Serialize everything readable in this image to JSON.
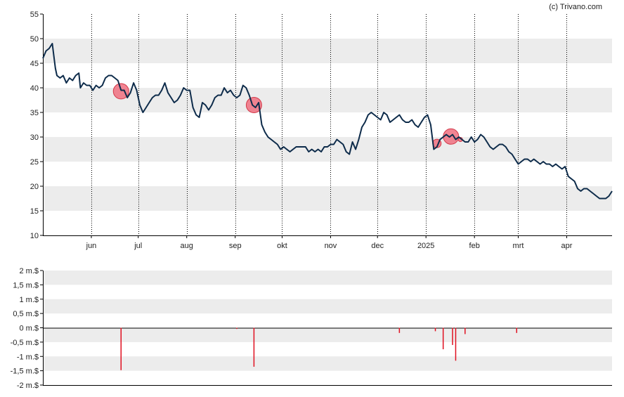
{
  "credit": "(c) Trivano.com",
  "colors": {
    "price_line": "#0d2b4a",
    "band": "#ececec",
    "marker_fill": "#f07080",
    "marker_stroke": "#d33a4a",
    "volume_bar": "#e01020",
    "axis": "#000000"
  },
  "chart_data": [
    {
      "type": "line",
      "title": "",
      "xlabel": "",
      "ylabel": "",
      "ylim": [
        10,
        55
      ],
      "y_ticks": [
        "10",
        "15",
        "20",
        "25",
        "30",
        "35",
        "40",
        "45",
        "50",
        "55"
      ],
      "y_tick_values": [
        10,
        15,
        20,
        25,
        30,
        35,
        40,
        45,
        50,
        55
      ],
      "x_ticks": [
        {
          "label": "jun",
          "day": 31
        },
        {
          "label": "jul",
          "day": 61
        },
        {
          "label": "aug",
          "day": 92
        },
        {
          "label": "sep",
          "day": 123
        },
        {
          "label": "okt",
          "day": 153
        },
        {
          "label": "nov",
          "day": 184
        },
        {
          "label": "dec",
          "day": 214
        },
        {
          "label": "2025",
          "day": 245
        },
        {
          "label": "feb",
          "day": 276
        },
        {
          "label": "mrt",
          "day": 304
        },
        {
          "label": "apr",
          "day": 335
        }
      ],
      "xlim": [
        0,
        364
      ],
      "grid": "alternating horizontal bands, dotted vertical month lines",
      "series": [
        {
          "points": [
            [
              0,
              46
            ],
            [
              2,
              47.5
            ],
            [
              4,
              48
            ],
            [
              6,
              49
            ],
            [
              8,
              44
            ],
            [
              9,
              42.5
            ],
            [
              11,
              42
            ],
            [
              13,
              42.5
            ],
            [
              15,
              41
            ],
            [
              17,
              42
            ],
            [
              19,
              41.5
            ],
            [
              21,
              42.5
            ],
            [
              23,
              43
            ],
            [
              24,
              40
            ],
            [
              26,
              41
            ],
            [
              28,
              40.5
            ],
            [
              30,
              40.5
            ],
            [
              32,
              39.5
            ],
            [
              34,
              40.5
            ],
            [
              36,
              40
            ],
            [
              38,
              40.5
            ],
            [
              40,
              42
            ],
            [
              42,
              42.5
            ],
            [
              44,
              42.5
            ],
            [
              46,
              42
            ],
            [
              48,
              41.5
            ],
            [
              50,
              39.5
            ],
            [
              52,
              39.5
            ],
            [
              54,
              38
            ],
            [
              56,
              39
            ],
            [
              58,
              41
            ],
            [
              60,
              39.5
            ],
            [
              62,
              36.5
            ],
            [
              64,
              35
            ],
            [
              66,
              36
            ],
            [
              68,
              37
            ],
            [
              70,
              38
            ],
            [
              72,
              38.5
            ],
            [
              74,
              38.5
            ],
            [
              76,
              39.5
            ],
            [
              78,
              41
            ],
            [
              80,
              39
            ],
            [
              82,
              38
            ],
            [
              84,
              37
            ],
            [
              86,
              37.5
            ],
            [
              88,
              38.5
            ],
            [
              90,
              40
            ],
            [
              92,
              39.5
            ],
            [
              94,
              39.5
            ],
            [
              96,
              36
            ],
            [
              98,
              34.5
            ],
            [
              100,
              34
            ],
            [
              102,
              37
            ],
            [
              104,
              36.5
            ],
            [
              106,
              35.5
            ],
            [
              108,
              36.5
            ],
            [
              110,
              38
            ],
            [
              112,
              38.5
            ],
            [
              114,
              38.5
            ],
            [
              116,
              40
            ],
            [
              118,
              39
            ],
            [
              120,
              39.5
            ],
            [
              122,
              38.5
            ],
            [
              124,
              38
            ],
            [
              126,
              38.5
            ],
            [
              128,
              40.5
            ],
            [
              130,
              40
            ],
            [
              132,
              38.5
            ],
            [
              134,
              36.5
            ],
            [
              136,
              36
            ],
            [
              138,
              37
            ],
            [
              140,
              32.5
            ],
            [
              142,
              31
            ],
            [
              144,
              30
            ],
            [
              146,
              29.5
            ],
            [
              148,
              29
            ],
            [
              150,
              28.5
            ],
            [
              152,
              27.5
            ],
            [
              154,
              28
            ],
            [
              156,
              27.5
            ],
            [
              158,
              27
            ],
            [
              160,
              27.5
            ],
            [
              162,
              28
            ],
            [
              164,
              28
            ],
            [
              166,
              28
            ],
            [
              168,
              28
            ],
            [
              170,
              27
            ],
            [
              172,
              27.5
            ],
            [
              174,
              27
            ],
            [
              176,
              27.5
            ],
            [
              178,
              27
            ],
            [
              180,
              28
            ],
            [
              182,
              28
            ],
            [
              184,
              28.5
            ],
            [
              186,
              28.5
            ],
            [
              188,
              29.5
            ],
            [
              190,
              29
            ],
            [
              192,
              28.5
            ],
            [
              194,
              27
            ],
            [
              196,
              26.5
            ],
            [
              198,
              29
            ],
            [
              200,
              27.5
            ],
            [
              202,
              29.5
            ],
            [
              204,
              32
            ],
            [
              206,
              33
            ],
            [
              208,
              34.5
            ],
            [
              210,
              35
            ],
            [
              212,
              34.5
            ],
            [
              214,
              34
            ],
            [
              216,
              33.5
            ],
            [
              218,
              35
            ],
            [
              220,
              34.5
            ],
            [
              222,
              33
            ],
            [
              224,
              33.5
            ],
            [
              226,
              34
            ],
            [
              228,
              34.5
            ],
            [
              230,
              33.5
            ],
            [
              232,
              33
            ],
            [
              234,
              33
            ],
            [
              236,
              33.5
            ],
            [
              238,
              32.5
            ],
            [
              240,
              32
            ],
            [
              242,
              33
            ],
            [
              244,
              34
            ],
            [
              246,
              34.5
            ],
            [
              248,
              32.5
            ],
            [
              250,
              27.5
            ],
            [
              252,
              28
            ],
            [
              254,
              29.5
            ],
            [
              256,
              30
            ],
            [
              258,
              30.5
            ],
            [
              260,
              30
            ],
            [
              262,
              30.5
            ],
            [
              264,
              29.5
            ],
            [
              266,
              30
            ],
            [
              268,
              29.5
            ],
            [
              270,
              29
            ],
            [
              272,
              29
            ],
            [
              274,
              30
            ],
            [
              276,
              29
            ],
            [
              278,
              29.5
            ],
            [
              280,
              30.5
            ],
            [
              282,
              30
            ],
            [
              284,
              29
            ],
            [
              286,
              28
            ],
            [
              288,
              27.5
            ],
            [
              290,
              28
            ],
            [
              292,
              28.5
            ],
            [
              294,
              28.5
            ],
            [
              296,
              28
            ],
            [
              298,
              27
            ],
            [
              300,
              26.5
            ],
            [
              302,
              25.5
            ],
            [
              304,
              24.5
            ],
            [
              306,
              25
            ],
            [
              308,
              25.5
            ],
            [
              310,
              25.5
            ],
            [
              312,
              25
            ],
            [
              314,
              25.5
            ],
            [
              316,
              25
            ],
            [
              318,
              24.5
            ],
            [
              320,
              25
            ],
            [
              322,
              24.5
            ],
            [
              324,
              24.5
            ],
            [
              326,
              24
            ],
            [
              328,
              24.5
            ],
            [
              330,
              24
            ],
            [
              332,
              23.5
            ],
            [
              334,
              24
            ],
            [
              336,
              22
            ],
            [
              338,
              21.5
            ],
            [
              340,
              21
            ],
            [
              342,
              19.5
            ],
            [
              344,
              19
            ],
            [
              346,
              19.5
            ],
            [
              348,
              19.5
            ],
            [
              350,
              19
            ],
            [
              352,
              18.5
            ],
            [
              354,
              18
            ],
            [
              356,
              17.5
            ],
            [
              358,
              17.5
            ],
            [
              360,
              17.5
            ],
            [
              362,
              18
            ],
            [
              364,
              19
            ]
          ]
        }
      ],
      "markers": [
        {
          "day": 50,
          "value": 39.3,
          "size": "large"
        },
        {
          "day": 135,
          "value": 36.5,
          "size": "large"
        },
        {
          "day": 252,
          "value": 28.7,
          "size": "small"
        },
        {
          "day": 261,
          "value": 30.1,
          "size": "large"
        },
        {
          "day": 267,
          "value": 29.5,
          "size": "tiny"
        }
      ]
    },
    {
      "type": "bar",
      "title": "",
      "xlabel": "",
      "ylabel": "",
      "ylim": [
        -2,
        2
      ],
      "y_ticks": [
        "2 m.$",
        "1,5 m.$",
        "1 m.$",
        "0,5 m.$",
        "0 m.$",
        "-0,5 m.$",
        "-1 m.$",
        "-1,5 m.$",
        "-2 m.$"
      ],
      "y_tick_values": [
        2,
        1.5,
        1,
        0.5,
        0,
        -0.5,
        -1,
        -1.5,
        -2
      ],
      "xlim": [
        0,
        364
      ],
      "grid": "alternating horizontal bands",
      "bars": [
        {
          "day": 50,
          "value": -1.48
        },
        {
          "day": 124,
          "value": -0.04
        },
        {
          "day": 135,
          "value": -1.36
        },
        {
          "day": 228,
          "value": -0.18
        },
        {
          "day": 251,
          "value": -0.12
        },
        {
          "day": 256,
          "value": -0.75
        },
        {
          "day": 262,
          "value": -0.6
        },
        {
          "day": 264,
          "value": -1.15
        },
        {
          "day": 270,
          "value": -0.22
        },
        {
          "day": 303,
          "value": -0.18
        }
      ]
    }
  ]
}
